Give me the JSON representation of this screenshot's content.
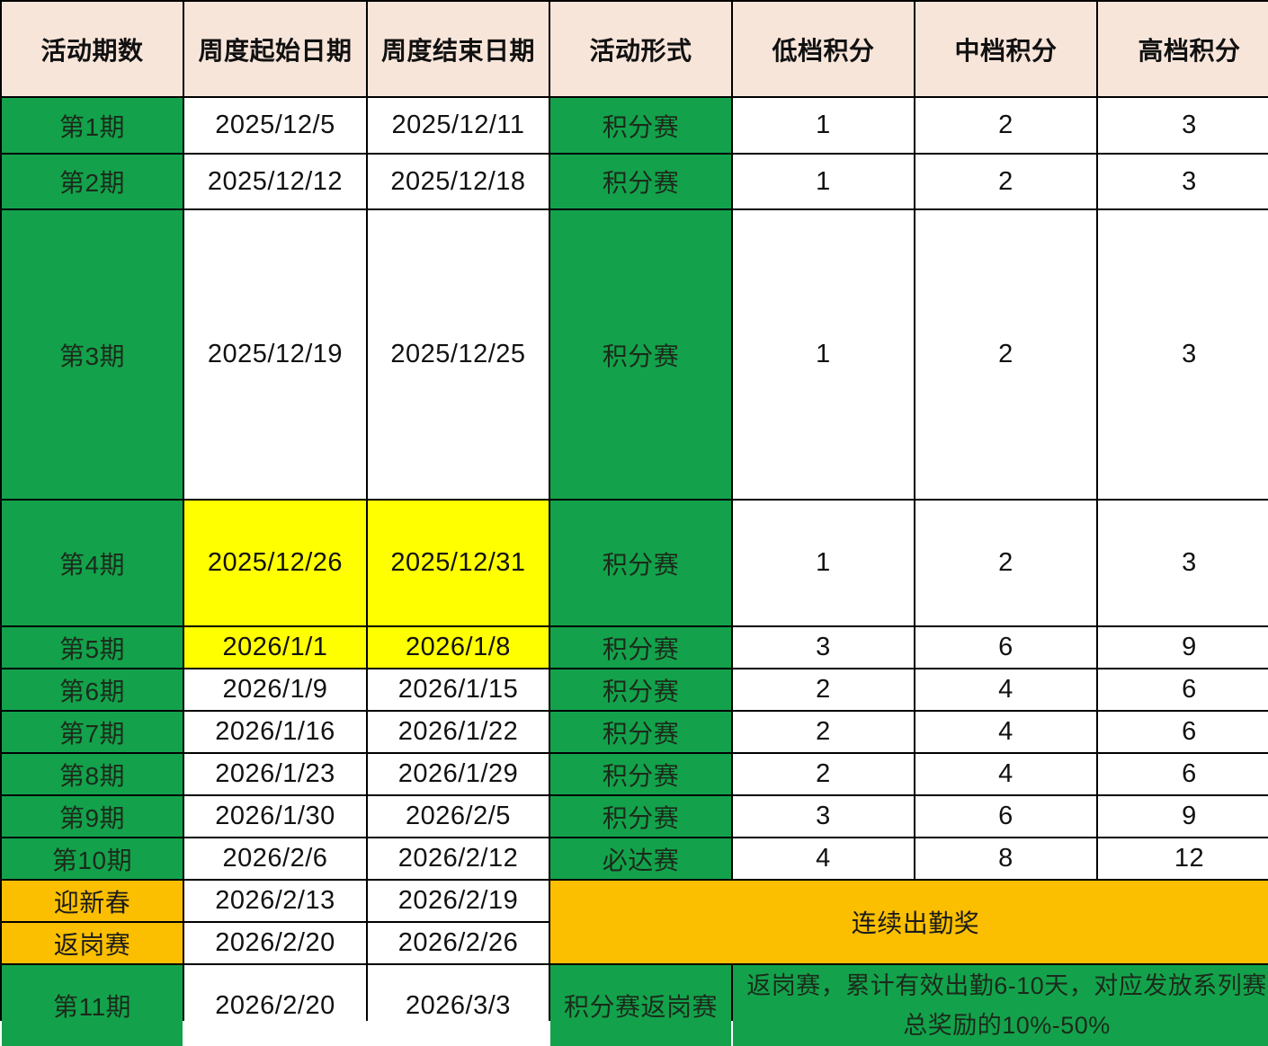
{
  "colors": {
    "header": "#f8e5da",
    "green": "#13a24b",
    "yellow": "#ffff00",
    "orange": "#fbbf00"
  },
  "headers": [
    "活动期数",
    "周度起始日期",
    "周度结束日期",
    "活动形式",
    "低档积分",
    "中档积分",
    "高档积分"
  ],
  "rows": [
    {
      "period": "第1期",
      "start": "2025/12/5",
      "end": "2025/12/11",
      "format": "积分赛",
      "low": "1",
      "mid": "2",
      "high": "3"
    },
    {
      "period": "第2期",
      "start": "2025/12/12",
      "end": "2025/12/18",
      "format": "积分赛",
      "low": "1",
      "mid": "2",
      "high": "3"
    },
    {
      "period": "第3期",
      "start": "2025/12/19",
      "end": "2025/12/25",
      "format": "积分赛",
      "low": "1",
      "mid": "2",
      "high": "3"
    },
    {
      "period": "第4期",
      "start": "2025/12/26",
      "end": "2025/12/31",
      "format": "积分赛",
      "low": "1",
      "mid": "2",
      "high": "3",
      "highlight_dates": true
    },
    {
      "period": "第5期",
      "start": "2026/1/1",
      "end": "2026/1/8",
      "format": "积分赛",
      "low": "3",
      "mid": "6",
      "high": "9",
      "highlight_dates": true
    },
    {
      "period": "第6期",
      "start": "2026/1/9",
      "end": "2026/1/15",
      "format": "积分赛",
      "low": "2",
      "mid": "4",
      "high": "6"
    },
    {
      "period": "第7期",
      "start": "2026/1/16",
      "end": "2026/1/22",
      "format": "积分赛",
      "low": "2",
      "mid": "4",
      "high": "6"
    },
    {
      "period": "第8期",
      "start": "2026/1/23",
      "end": "2026/1/29",
      "format": "积分赛",
      "low": "2",
      "mid": "4",
      "high": "6"
    },
    {
      "period": "第9期",
      "start": "2026/1/30",
      "end": "2026/2/5",
      "format": "积分赛",
      "low": "3",
      "mid": "6",
      "high": "9"
    },
    {
      "period": "第10期",
      "start": "2026/2/6",
      "end": "2026/2/12",
      "format": "必达赛",
      "low": "4",
      "mid": "8",
      "high": "12"
    }
  ],
  "special_rows": [
    {
      "period": "迎新春",
      "start": "2026/2/13",
      "end": "2026/2/19"
    },
    {
      "period": "返岗赛",
      "start": "2026/2/20",
      "end": "2026/2/26"
    }
  ],
  "special_merged": "连续出勤奖",
  "last_row": {
    "period": "第11期",
    "start": "2026/2/20",
    "end": "2026/3/3",
    "format": "积分赛返岗赛",
    "description": "返岗赛，累计有效出勤6-10天，对应发放系列赛总奖励的10%-50%"
  }
}
